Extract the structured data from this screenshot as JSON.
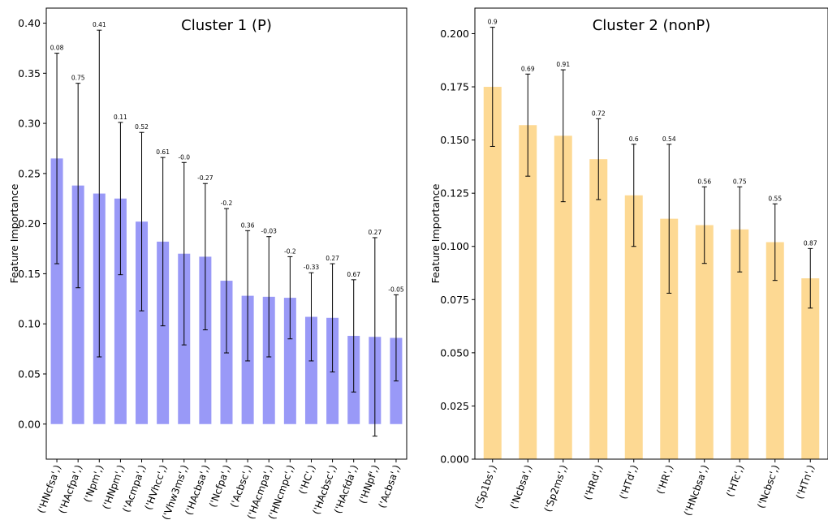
{
  "chart_data": [
    {
      "type": "bar",
      "title": "Cluster 1 (P)",
      "xlabel": "",
      "ylabel": "Feature Importance",
      "ylim": [
        -0.035,
        0.415
      ],
      "yticks": [
        0.0,
        0.05,
        0.1,
        0.15,
        0.2,
        0.25,
        0.3,
        0.35,
        0.4
      ],
      "ytick_labels": [
        "0.00",
        "0.05",
        "0.10",
        "0.15",
        "0.20",
        "0.25",
        "0.30",
        "0.35",
        "0.40"
      ],
      "color": "#9999f7",
      "categories": [
        "('HNcfsa',)",
        "('HAcfpa',)",
        "('Npm',)",
        "('HNpm',)",
        "('Acmpa',)",
        "('HVhcc',)",
        "('Vhw3ms',)",
        "('HAcbsa',)",
        "('Ncfpa',)",
        "('Acbsc',)",
        "('HAcmpa',)",
        "('HNcmpc',)",
        "('HC',)",
        "('HAcbsc',)",
        "('HAcfda',)",
        "('HNpf',)",
        "('Acbsa',)"
      ],
      "values": [
        0.265,
        0.238,
        0.23,
        0.225,
        0.202,
        0.182,
        0.17,
        0.167,
        0.143,
        0.128,
        0.127,
        0.126,
        0.107,
        0.106,
        0.088,
        0.087,
        0.086
      ],
      "errors": [
        0.105,
        0.102,
        0.163,
        0.076,
        0.089,
        0.084,
        0.091,
        0.073,
        0.072,
        0.065,
        0.06,
        0.041,
        0.044,
        0.054,
        0.056,
        0.099,
        0.043
      ],
      "annotations": [
        "0.08",
        "0.75",
        "0.41",
        "0.11",
        "0.52",
        "0.61",
        "-0.0",
        "-0.27",
        "-0.2",
        "0.36",
        "-0.03",
        "-0.2",
        "-0.33",
        "0.27",
        "0.67",
        "0.27",
        "-0.05"
      ]
    },
    {
      "type": "bar",
      "title": "Cluster 2 (nonP)",
      "xlabel": "",
      "ylabel": "Feature Importance",
      "ylim": [
        0.0,
        0.212
      ],
      "yticks": [
        0.0,
        0.025,
        0.05,
        0.075,
        0.1,
        0.125,
        0.15,
        0.175,
        0.2
      ],
      "ytick_labels": [
        "0.000",
        "0.025",
        "0.050",
        "0.075",
        "0.100",
        "0.125",
        "0.150",
        "0.175",
        "0.200"
      ],
      "color": "#fdd993",
      "categories": [
        "('Sp1bs',)",
        "('Ncbsa',)",
        "('Sp2ms',)",
        "('HRd',)",
        "('HTd',)",
        "('HR',)",
        "('HNcbsa',)",
        "('HTc',)",
        "('Ncbsc',)",
        "('HTn',)"
      ],
      "values": [
        0.175,
        0.157,
        0.152,
        0.141,
        0.124,
        0.113,
        0.11,
        0.108,
        0.102,
        0.085
      ],
      "errors": [
        0.028,
        0.024,
        0.031,
        0.019,
        0.024,
        0.035,
        0.018,
        0.02,
        0.018,
        0.014
      ],
      "annotations": [
        "0.9",
        "0.69",
        "0.91",
        "0.72",
        "0.6",
        "0.54",
        "0.56",
        "0.75",
        "0.55",
        "0.87"
      ]
    }
  ]
}
